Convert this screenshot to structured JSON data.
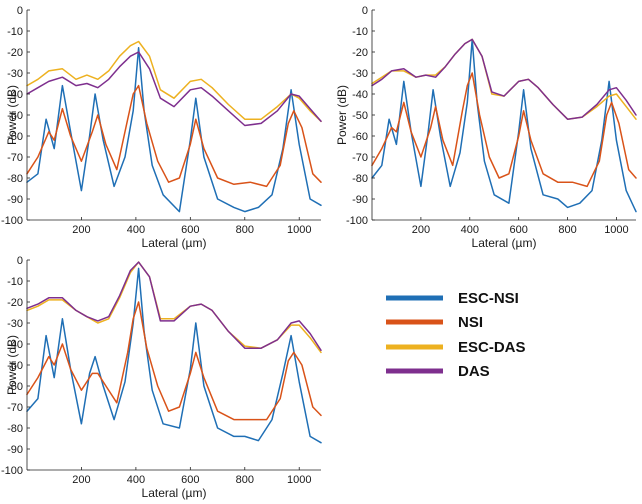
{
  "chart_data": [
    {
      "type": "line",
      "xlabel": "Lateral (µm)",
      "ylabel": "Power (dB)",
      "xlim": [
        0,
        1080
      ],
      "ylim": [
        -100,
        0
      ],
      "xticks": [
        200,
        400,
        600,
        800,
        1000
      ],
      "yticks": [
        0,
        -10,
        -20,
        -30,
        -40,
        -50,
        -60,
        -70,
        -80,
        -90,
        -100
      ],
      "series": [
        {
          "name": "ESC-NSI",
          "x": [
            0,
            40,
            70,
            100,
            130,
            160,
            200,
            230,
            250,
            280,
            320,
            360,
            390,
            410,
            430,
            460,
            500,
            560,
            600,
            620,
            650,
            700,
            760,
            800,
            850,
            900,
            940,
            970,
            1000,
            1040,
            1080
          ],
          "y": [
            -82,
            -78,
            -52,
            -66,
            -36,
            -58,
            -86,
            -60,
            -40,
            -62,
            -84,
            -70,
            -48,
            -18,
            -48,
            -74,
            -88,
            -96,
            -62,
            -42,
            -70,
            -90,
            -94,
            -96,
            -94,
            -88,
            -66,
            -38,
            -64,
            -90,
            -93
          ]
        },
        {
          "name": "NSI",
          "x": [
            0,
            40,
            80,
            100,
            130,
            160,
            200,
            240,
            260,
            290,
            330,
            370,
            390,
            410,
            440,
            480,
            520,
            560,
            600,
            620,
            650,
            700,
            760,
            820,
            880,
            930,
            960,
            980,
            1010,
            1050,
            1080
          ],
          "y": [
            -78,
            -70,
            -58,
            -62,
            -47,
            -60,
            -72,
            -58,
            -50,
            -64,
            -76,
            -52,
            -40,
            -36,
            -54,
            -72,
            -82,
            -80,
            -64,
            -52,
            -66,
            -80,
            -83,
            -82,
            -84,
            -74,
            -54,
            -48,
            -56,
            -78,
            -82
          ]
        },
        {
          "name": "ESC-DAS",
          "x": [
            0,
            40,
            80,
            130,
            180,
            220,
            260,
            300,
            340,
            380,
            410,
            450,
            490,
            540,
            600,
            640,
            680,
            740,
            800,
            860,
            920,
            970,
            1000,
            1040,
            1080
          ],
          "y": [
            -36,
            -33,
            -29,
            -28,
            -33,
            -31,
            -33,
            -29,
            -22,
            -17,
            -15,
            -22,
            -38,
            -42,
            -34,
            -33,
            -37,
            -45,
            -52,
            -52,
            -46,
            -40,
            -42,
            -48,
            -53
          ]
        },
        {
          "name": "DAS",
          "x": [
            0,
            40,
            80,
            130,
            180,
            220,
            260,
            300,
            340,
            380,
            410,
            450,
            490,
            540,
            600,
            640,
            680,
            740,
            800,
            860,
            920,
            970,
            1000,
            1040,
            1080
          ],
          "y": [
            -40,
            -37,
            -34,
            -32,
            -36,
            -35,
            -37,
            -33,
            -27,
            -22,
            -20,
            -28,
            -42,
            -46,
            -38,
            -37,
            -41,
            -48,
            -55,
            -54,
            -48,
            -40,
            -41,
            -47,
            -53
          ]
        }
      ]
    },
    {
      "type": "line",
      "xlabel": "Lateral (µm)",
      "ylabel": "Power (dB)",
      "xlim": [
        0,
        1080
      ],
      "ylim": [
        -100,
        0
      ],
      "xticks": [
        200,
        400,
        600,
        800,
        1000
      ],
      "yticks": [
        0,
        -10,
        -20,
        -30,
        -40,
        -50,
        -60,
        -70,
        -80,
        -90,
        -100
      ],
      "series": [
        {
          "name": "ESC-NSI",
          "x": [
            0,
            40,
            70,
            100,
            130,
            160,
            200,
            230,
            250,
            280,
            320,
            360,
            390,
            410,
            430,
            460,
            500,
            560,
            600,
            620,
            650,
            700,
            760,
            800,
            850,
            900,
            940,
            970,
            1000,
            1040,
            1080
          ],
          "y": [
            -80,
            -74,
            -52,
            -64,
            -34,
            -58,
            -84,
            -58,
            -38,
            -60,
            -84,
            -68,
            -44,
            -14,
            -44,
            -72,
            -88,
            -92,
            -58,
            -38,
            -66,
            -88,
            -90,
            -94,
            -92,
            -86,
            -62,
            -34,
            -62,
            -86,
            -96
          ]
        },
        {
          "name": "NSI",
          "x": [
            0,
            40,
            80,
            100,
            130,
            160,
            200,
            240,
            260,
            290,
            330,
            370,
            390,
            410,
            440,
            480,
            520,
            560,
            600,
            620,
            650,
            700,
            760,
            820,
            880,
            930,
            960,
            980,
            1010,
            1050,
            1080
          ],
          "y": [
            -74,
            -66,
            -56,
            -58,
            -44,
            -58,
            -70,
            -56,
            -46,
            -62,
            -74,
            -48,
            -36,
            -30,
            -50,
            -70,
            -80,
            -78,
            -60,
            -48,
            -62,
            -78,
            -82,
            -82,
            -84,
            -72,
            -50,
            -44,
            -54,
            -76,
            -80
          ]
        },
        {
          "name": "ESC-DAS",
          "x": [
            0,
            40,
            80,
            130,
            180,
            220,
            260,
            300,
            340,
            380,
            410,
            450,
            490,
            540,
            600,
            640,
            680,
            740,
            800,
            860,
            920,
            970,
            1000,
            1040,
            1080
          ],
          "y": [
            -35,
            -32,
            -29,
            -29,
            -32,
            -31,
            -31,
            -27,
            -21,
            -16,
            -14,
            -22,
            -40,
            -41,
            -34,
            -33,
            -37,
            -45,
            -52,
            -51,
            -46,
            -41,
            -40,
            -46,
            -52
          ]
        },
        {
          "name": "DAS",
          "x": [
            0,
            40,
            80,
            130,
            180,
            220,
            260,
            300,
            340,
            380,
            410,
            450,
            490,
            540,
            600,
            640,
            680,
            740,
            800,
            860,
            920,
            970,
            1000,
            1040,
            1080
          ],
          "y": [
            -36,
            -33,
            -29,
            -28,
            -32,
            -31,
            -32,
            -27,
            -21,
            -16,
            -14,
            -22,
            -39,
            -41,
            -34,
            -33,
            -37,
            -45,
            -52,
            -51,
            -45,
            -38,
            -37,
            -43,
            -50
          ]
        }
      ]
    },
    {
      "type": "line",
      "xlabel": "Lateral (µm)",
      "ylabel": "Power (dB)",
      "xlim": [
        0,
        1080
      ],
      "ylim": [
        -100,
        0
      ],
      "xticks": [
        200,
        400,
        600,
        800,
        1000
      ],
      "yticks": [
        0,
        -10,
        -20,
        -30,
        -40,
        -50,
        -60,
        -70,
        -80,
        -90,
        -100
      ],
      "series": [
        {
          "name": "ESC-NSI",
          "x": [
            0,
            40,
            70,
            100,
            130,
            160,
            200,
            230,
            250,
            280,
            320,
            360,
            390,
            410,
            430,
            460,
            500,
            560,
            600,
            620,
            650,
            700,
            760,
            800,
            850,
            900,
            940,
            970,
            1000,
            1040,
            1080
          ],
          "y": [
            -72,
            -66,
            -36,
            -56,
            -28,
            -52,
            -78,
            -54,
            -46,
            -60,
            -76,
            -58,
            -30,
            -4,
            -34,
            -62,
            -78,
            -80,
            -52,
            -30,
            -60,
            -80,
            -84,
            -84,
            -86,
            -76,
            -54,
            -36,
            -58,
            -84,
            -87
          ]
        },
        {
          "name": "NSI",
          "x": [
            0,
            40,
            80,
            100,
            130,
            160,
            200,
            240,
            260,
            290,
            330,
            370,
            390,
            410,
            440,
            480,
            520,
            560,
            600,
            620,
            650,
            700,
            760,
            820,
            880,
            930,
            960,
            980,
            1010,
            1050,
            1080
          ],
          "y": [
            -64,
            -56,
            -46,
            -50,
            -40,
            -52,
            -62,
            -54,
            -54,
            -60,
            -68,
            -44,
            -28,
            -20,
            -42,
            -60,
            -72,
            -70,
            -54,
            -44,
            -56,
            -72,
            -76,
            -76,
            -76,
            -66,
            -48,
            -44,
            -50,
            -70,
            -74
          ]
        },
        {
          "name": "ESC-DAS",
          "x": [
            0,
            40,
            80,
            130,
            180,
            220,
            260,
            300,
            340,
            380,
            410,
            450,
            490,
            540,
            600,
            640,
            680,
            740,
            800,
            860,
            920,
            970,
            1000,
            1040,
            1080
          ],
          "y": [
            -24,
            -22,
            -19,
            -19,
            -24,
            -27,
            -30,
            -28,
            -18,
            -6,
            -1,
            -8,
            -28,
            -28,
            -22,
            -21,
            -24,
            -34,
            -41,
            -42,
            -38,
            -31,
            -31,
            -37,
            -44
          ]
        },
        {
          "name": "DAS",
          "x": [
            0,
            40,
            80,
            130,
            180,
            220,
            260,
            300,
            340,
            380,
            410,
            450,
            490,
            540,
            600,
            640,
            680,
            740,
            800,
            860,
            920,
            970,
            1000,
            1040,
            1080
          ],
          "y": [
            -23,
            -21,
            -18,
            -18,
            -24,
            -27,
            -29,
            -27,
            -17,
            -5,
            -1,
            -8,
            -29,
            -29,
            -22,
            -21,
            -24,
            -34,
            -42,
            -42,
            -38,
            -30,
            -29,
            -35,
            -43
          ]
        }
      ]
    }
  ],
  "legend": {
    "items": [
      {
        "label": "ESC-NSI",
        "color": "#1f6fb5"
      },
      {
        "label": "NSI",
        "color": "#d95319"
      },
      {
        "label": "ESC-DAS",
        "color": "#edb120"
      },
      {
        "label": "DAS",
        "color": "#7e2f8e"
      }
    ]
  }
}
